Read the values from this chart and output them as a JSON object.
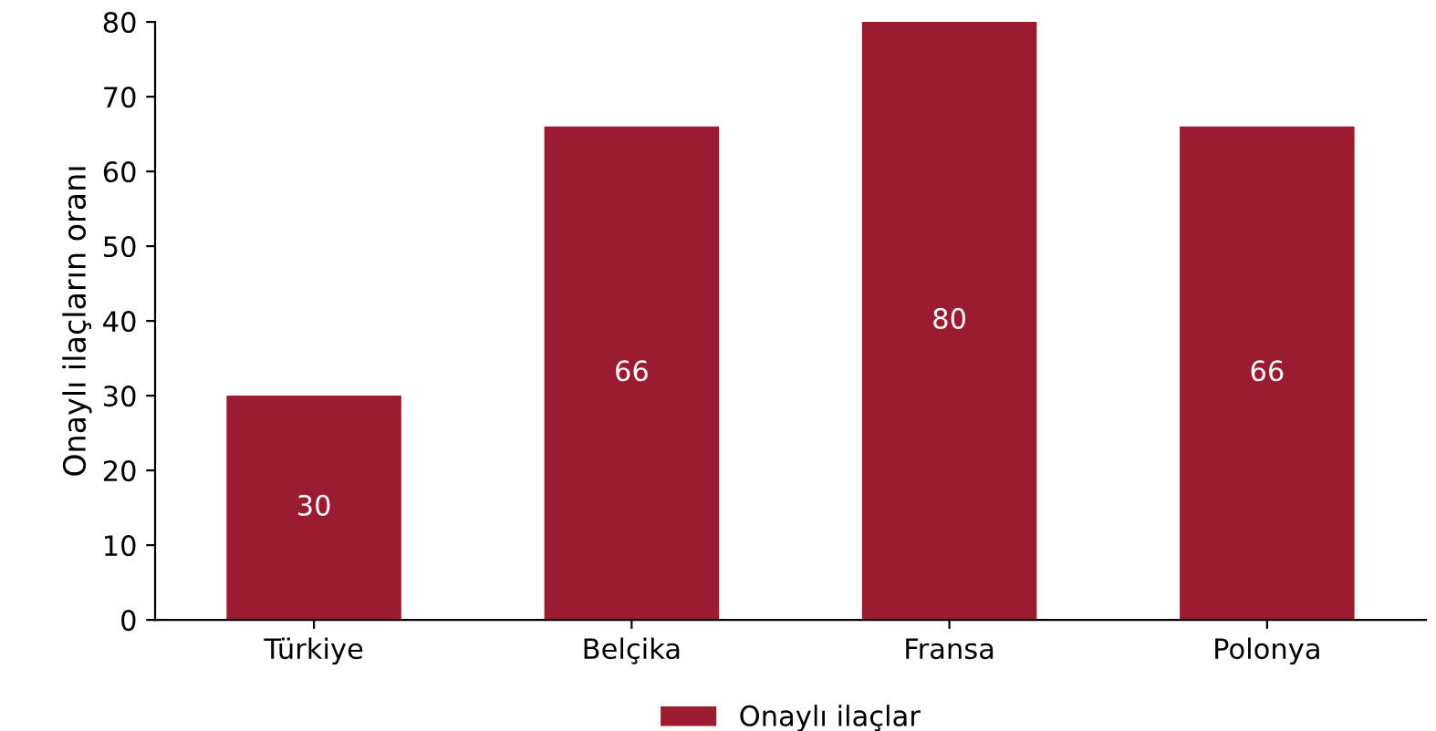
{
  "chart_data": {
    "type": "bar",
    "ylabel": "Onaylı ilaçların oranı",
    "categories": [
      "Türkiye",
      "Belçika",
      "Fransa",
      "Polonya"
    ],
    "series": [
      {
        "name": "Onaylı ilaçlar",
        "color": "#9b1c31",
        "values": [
          30,
          66,
          80,
          66
        ]
      }
    ],
    "ylim": [
      0,
      80
    ],
    "yticks": [
      0,
      10,
      20,
      30,
      40,
      50,
      60,
      70,
      80
    ],
    "grid": false,
    "legend": "bottom",
    "data_labels": true
  }
}
